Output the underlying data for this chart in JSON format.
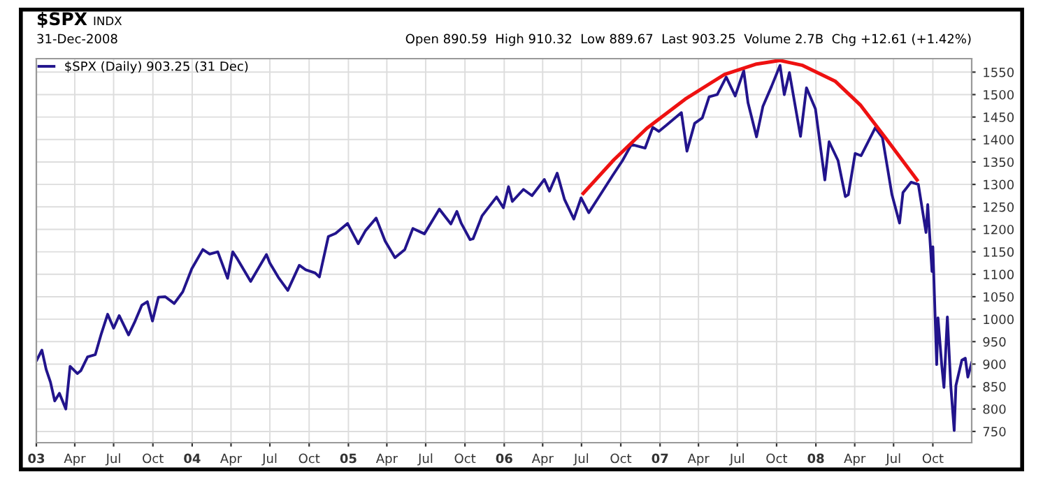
{
  "chart_data": {
    "type": "line",
    "title": "$SPX",
    "subtitle": "31-Dec-2008",
    "annotations": [
      "INDX",
      "Open 890.59  High 910.32  Low 889.67  Last 903.25  Volume 2.7B  Chg +12.61 (+1.42%)"
    ],
    "series": [
      {
        "name": "$SPX (Daily) 903.25 (31 Dec)",
        "color": "#22148c",
        "x": [
          "2003-01-02",
          "2003-01-14",
          "2003-01-24",
          "2003-02-03",
          "2003-02-13",
          "2003-02-24",
          "2003-03-11",
          "2003-03-21",
          "2003-04-07",
          "2003-04-15",
          "2003-05-01",
          "2003-05-19",
          "2003-06-02",
          "2003-06-17",
          "2003-07-01",
          "2003-07-14",
          "2003-08-05",
          "2003-08-20",
          "2003-09-05",
          "2003-09-18",
          "2003-09-30",
          "2003-10-14",
          "2003-10-30",
          "2003-11-20",
          "2003-12-10",
          "2003-12-31",
          "2004-01-26",
          "2004-02-11",
          "2004-03-01",
          "2004-03-24",
          "2004-04-05",
          "2004-04-16",
          "2004-05-17",
          "2004-06-23",
          "2004-07-01",
          "2004-07-21",
          "2004-08-12",
          "2004-09-08",
          "2004-09-23",
          "2004-10-15",
          "2004-10-25",
          "2004-11-15",
          "2004-12-02",
          "2004-12-30",
          "2005-01-24",
          "2005-02-10",
          "2005-03-07",
          "2005-03-28",
          "2005-04-20",
          "2005-05-13",
          "2005-06-01",
          "2005-06-28",
          "2005-08-02",
          "2005-08-29",
          "2005-09-12",
          "2005-09-22",
          "2005-10-13",
          "2005-10-20",
          "2005-11-10",
          "2005-12-14",
          "2005-12-30",
          "2006-01-11",
          "2006-01-20",
          "2006-02-15",
          "2006-03-07",
          "2006-04-05",
          "2006-04-17",
          "2006-05-05",
          "2006-05-22",
          "2006-06-13",
          "2006-06-30",
          "2006-07-18",
          "2006-08-10",
          "2006-09-12",
          "2006-10-05",
          "2006-10-26",
          "2006-11-27",
          "2006-12-15",
          "2006-12-29",
          "2007-01-15",
          "2007-02-20",
          "2007-03-05",
          "2007-03-23",
          "2007-04-10",
          "2007-04-26",
          "2007-05-15",
          "2007-06-05",
          "2007-06-26",
          "2007-07-16",
          "2007-07-26",
          "2007-08-15",
          "2007-08-30",
          "2007-09-19",
          "2007-10-09",
          "2007-10-19",
          "2007-10-31",
          "2007-11-26",
          "2007-12-10",
          "2007-12-31",
          "2008-01-22",
          "2008-02-01",
          "2008-02-22",
          "2008-03-10",
          "2008-03-17",
          "2008-04-02",
          "2008-04-16",
          "2008-05-19",
          "2008-06-05",
          "2008-06-27",
          "2008-07-15",
          "2008-07-23",
          "2008-08-11",
          "2008-08-28",
          "2008-09-15",
          "2008-09-19",
          "2008-09-29",
          "2008-10-01",
          "2008-10-10",
          "2008-10-13",
          "2008-10-22",
          "2008-10-27",
          "2008-11-04",
          "2008-11-12",
          "2008-11-20",
          "2008-11-24",
          "2008-12-08",
          "2008-12-16",
          "2008-12-22",
          "2008-12-31"
        ],
        "values": [
          909,
          931,
          888,
          860,
          818,
          835,
          800,
          895,
          879,
          885,
          916,
          921,
          967,
          1011,
          980,
          1008,
          965,
          995,
          1031,
          1039,
          996,
          1049,
          1050,
          1035,
          1061,
          1112,
          1155,
          1145,
          1150,
          1091,
          1150,
          1134,
          1084,
          1144,
          1125,
          1093,
          1064,
          1120,
          1110,
          1103,
          1094,
          1184,
          1191,
          1213,
          1168,
          1197,
          1225,
          1174,
          1137,
          1155,
          1202,
          1190,
          1245,
          1212,
          1240,
          1214,
          1177,
          1179,
          1230,
          1272,
          1248,
          1295,
          1262,
          1289,
          1275,
          1311,
          1285,
          1325,
          1267,
          1223,
          1270,
          1237,
          1271,
          1320,
          1353,
          1389,
          1381,
          1427,
          1418,
          1431,
          1460,
          1374,
          1436,
          1448,
          1495,
          1500,
          1539,
          1497,
          1553,
          1482,
          1406,
          1474,
          1518,
          1565,
          1500,
          1549,
          1407,
          1515,
          1468,
          1310,
          1395,
          1353,
          1273,
          1277,
          1369,
          1364,
          1426,
          1404,
          1278,
          1214,
          1282,
          1305,
          1300,
          1193,
          1255,
          1106,
          1161,
          899,
          1003,
          896,
          848,
          1005,
          852,
          752,
          852,
          909,
          913,
          871,
          903
        ]
      },
      {
        "color": "#ee1111",
        "x": [
          "2006-07-05",
          "2006-09-15",
          "2006-12-01",
          "2007-03-01",
          "2007-06-01",
          "2007-08-15",
          "2007-10-09",
          "2007-12-01",
          "2008-02-15",
          "2008-04-15",
          "2008-06-15",
          "2008-08-25"
        ],
        "values": [
          1280,
          1355,
          1425,
          1490,
          1545,
          1568,
          1576,
          1565,
          1530,
          1476,
          1400,
          1310
        ]
      }
    ],
    "xlim": [
      "2003-01-01",
      "2008-12-31"
    ],
    "xticks": [
      {
        "value": "2003-01-01",
        "label": "03"
      },
      {
        "value": "2003-04-01",
        "label": "Apr"
      },
      {
        "value": "2003-07-01",
        "label": "Jul"
      },
      {
        "value": "2003-10-01",
        "label": "Oct"
      },
      {
        "value": "2004-01-01",
        "label": "04"
      },
      {
        "value": "2004-04-01",
        "label": "Apr"
      },
      {
        "value": "2004-07-01",
        "label": "Jul"
      },
      {
        "value": "2004-10-01",
        "label": "Oct"
      },
      {
        "value": "2005-01-01",
        "label": "05"
      },
      {
        "value": "2005-04-01",
        "label": "Apr"
      },
      {
        "value": "2005-07-01",
        "label": "Jul"
      },
      {
        "value": "2005-10-01",
        "label": "Oct"
      },
      {
        "value": "2006-01-01",
        "label": "06"
      },
      {
        "value": "2006-04-01",
        "label": "Apr"
      },
      {
        "value": "2006-07-01",
        "label": "Jul"
      },
      {
        "value": "2006-10-01",
        "label": "Oct"
      },
      {
        "value": "2007-01-01",
        "label": "07"
      },
      {
        "value": "2007-04-01",
        "label": "Apr"
      },
      {
        "value": "2007-07-01",
        "label": "Jul"
      },
      {
        "value": "2007-10-01",
        "label": "Oct"
      },
      {
        "value": "2008-01-01",
        "label": "08"
      },
      {
        "value": "2008-04-01",
        "label": "Apr"
      },
      {
        "value": "2008-07-01",
        "label": "Jul"
      },
      {
        "value": "2008-10-01",
        "label": "Oct"
      }
    ],
    "ylim": [
      725,
      1580
    ],
    "yticks": [
      750,
      800,
      850,
      900,
      950,
      1000,
      1050,
      1100,
      1150,
      1200,
      1250,
      1300,
      1350,
      1400,
      1450,
      1500,
      1550
    ],
    "grid": true,
    "legend": "top left"
  }
}
